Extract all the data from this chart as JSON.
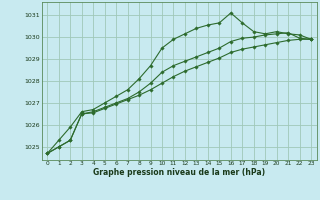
{
  "title": "Graphe pression niveau de la mer (hPa)",
  "background_color": "#c8eaf0",
  "grid_color": "#a0c8b8",
  "line_color": "#2d6b2d",
  "ylim": [
    1024.4,
    1031.6
  ],
  "xlim": [
    -0.5,
    23.5
  ],
  "yticks": [
    1025,
    1026,
    1027,
    1028,
    1029,
    1030,
    1031
  ],
  "xticks": [
    0,
    1,
    2,
    3,
    4,
    5,
    6,
    7,
    8,
    9,
    10,
    11,
    12,
    13,
    14,
    15,
    16,
    17,
    18,
    19,
    20,
    21,
    22,
    23
  ],
  "series": [
    [
      1024.7,
      1025.3,
      1025.9,
      1026.6,
      1026.7,
      1027.0,
      1027.3,
      1027.6,
      1028.1,
      1028.7,
      1029.5,
      1029.9,
      1030.15,
      1030.4,
      1030.55,
      1030.65,
      1031.1,
      1030.65,
      1030.25,
      1030.15,
      1030.25,
      1030.15,
      1030.1,
      1029.9
    ],
    [
      1024.7,
      1025.0,
      1025.3,
      1026.5,
      1026.6,
      1026.8,
      1027.0,
      1027.2,
      1027.5,
      1027.9,
      1028.4,
      1028.7,
      1028.9,
      1029.1,
      1029.3,
      1029.5,
      1029.8,
      1029.95,
      1030.0,
      1030.1,
      1030.15,
      1030.2,
      1029.95,
      1029.9
    ],
    [
      1024.7,
      1025.0,
      1025.3,
      1026.5,
      1026.55,
      1026.75,
      1026.95,
      1027.15,
      1027.35,
      1027.6,
      1027.9,
      1028.2,
      1028.45,
      1028.65,
      1028.85,
      1029.05,
      1029.3,
      1029.45,
      1029.55,
      1029.65,
      1029.75,
      1029.85,
      1029.9,
      1029.9
    ]
  ]
}
